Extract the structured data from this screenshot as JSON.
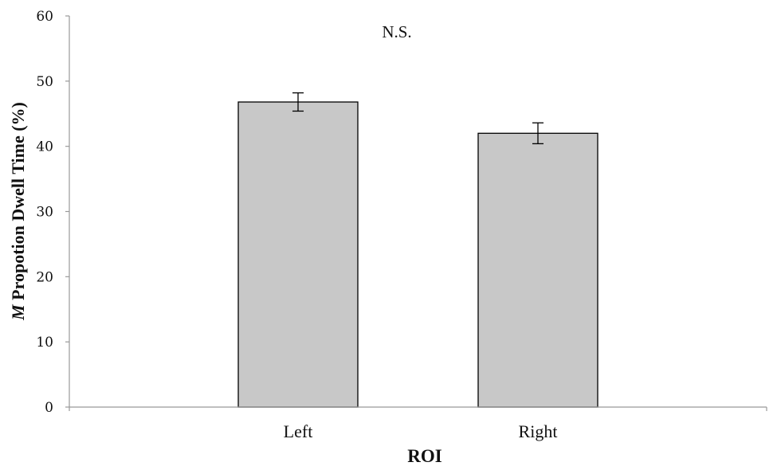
{
  "chart_data": {
    "type": "bar",
    "categories": [
      "Left",
      "Right"
    ],
    "values": [
      46.8,
      42.0
    ],
    "errors": [
      1.4,
      1.6
    ],
    "ylim": [
      0,
      60
    ],
    "yticks": [
      0,
      10,
      20,
      30,
      40,
      50,
      60
    ],
    "xlabel": "ROI",
    "ylabel_italic": "M",
    "ylabel_rest": " Propotion Dwell Time (%)",
    "annotation": "N.S.",
    "grid": false,
    "legend": "none",
    "bar_color": "#c8c8c8",
    "bar_edge_color": "#000000",
    "axis_color": "#999999"
  }
}
